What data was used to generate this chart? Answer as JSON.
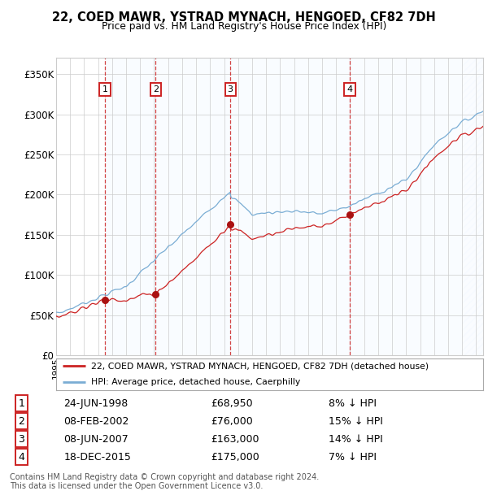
{
  "title": "22, COED MAWR, YSTRAD MYNACH, HENGOED, CF82 7DH",
  "subtitle": "Price paid vs. HM Land Registry's House Price Index (HPI)",
  "ylim": [
    0,
    370000
  ],
  "yticks": [
    0,
    50000,
    100000,
    150000,
    200000,
    250000,
    300000,
    350000
  ],
  "ytick_labels": [
    "£0",
    "£50K",
    "£100K",
    "£150K",
    "£200K",
    "£250K",
    "£300K",
    "£350K"
  ],
  "hpi_color": "#7aadd4",
  "price_color": "#cc2222",
  "sale_marker_color": "#aa1111",
  "dashed_line_color": "#cc2222",
  "shade_color": "#ddeeff",
  "sales": [
    {
      "date_num": 1998.49,
      "price": 68950,
      "label": "1"
    },
    {
      "date_num": 2002.11,
      "price": 76000,
      "label": "2"
    },
    {
      "date_num": 2007.44,
      "price": 163000,
      "label": "3"
    },
    {
      "date_num": 2015.97,
      "price": 175000,
      "label": "4"
    }
  ],
  "legend_property_label": "22, COED MAWR, YSTRAD MYNACH, HENGOED, CF82 7DH (detached house)",
  "legend_hpi_label": "HPI: Average price, detached house, Caerphilly",
  "footer": "Contains HM Land Registry data © Crown copyright and database right 2024.\nThis data is licensed under the Open Government Licence v3.0.",
  "xmin": 1995.0,
  "xmax": 2025.5,
  "hatch_start": 2024.0,
  "background_color": "#ffffff",
  "grid_color": "#cccccc",
  "table_rows": [
    [
      "1",
      "24-JUN-1998",
      "£68,950",
      "8% ↓ HPI"
    ],
    [
      "2",
      "08-FEB-2002",
      "£76,000",
      "15% ↓ HPI"
    ],
    [
      "3",
      "08-JUN-2007",
      "£163,000",
      "14% ↓ HPI"
    ],
    [
      "4",
      "18-DEC-2015",
      "£175,000",
      "7% ↓ HPI"
    ]
  ]
}
